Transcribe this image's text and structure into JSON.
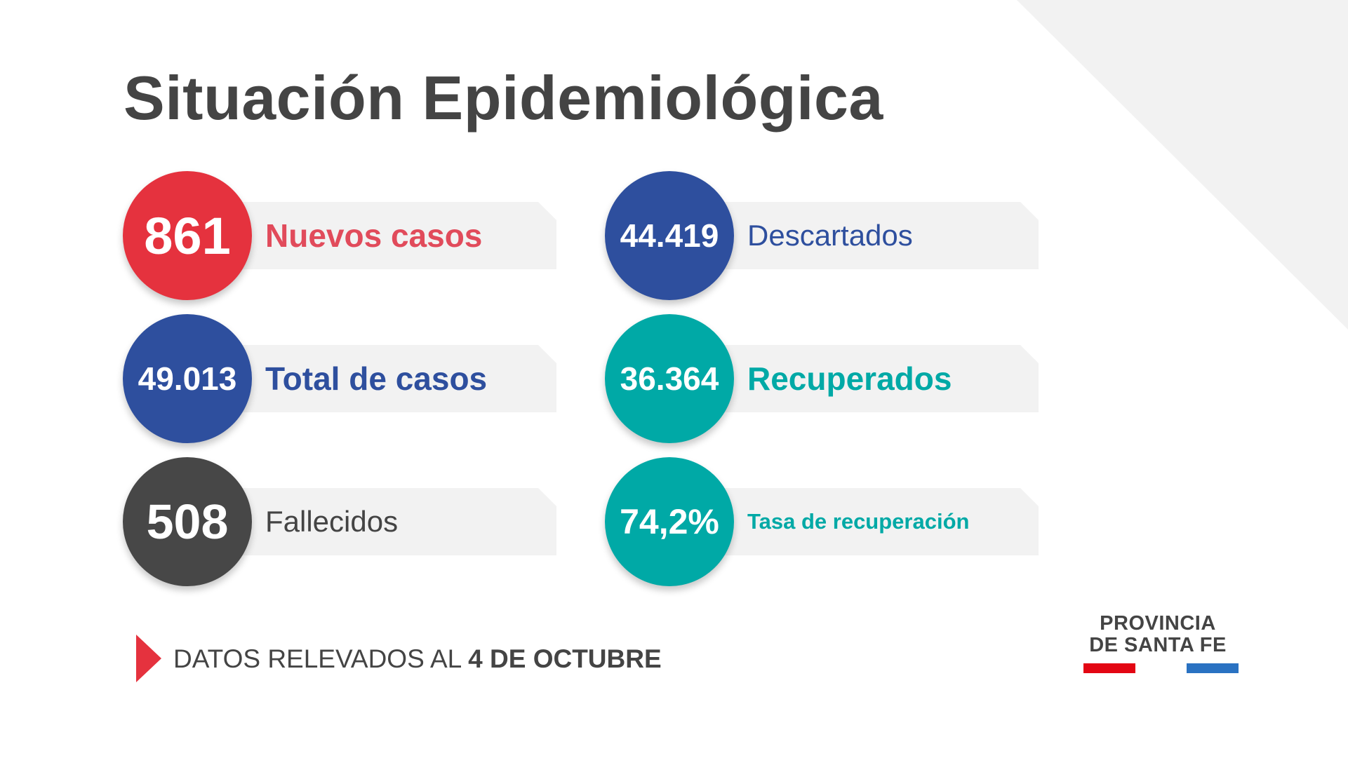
{
  "title": "Situación Epidemiológica",
  "stats": [
    {
      "value": "861",
      "label": "Nuevos casos",
      "circle_color": "#e5323e",
      "label_color": "#e14b5b"
    },
    {
      "value": "49.013",
      "label": "Total de casos",
      "circle_color": "#2e4f9e",
      "label_color": "#2e4f9e"
    },
    {
      "value": "508",
      "label": "Fallecidos",
      "circle_color": "#474747",
      "label_color": "#444444"
    },
    {
      "value": "44.419",
      "label": "Descartados",
      "circle_color": "#2e4f9e",
      "label_color": "#2e4f9e"
    },
    {
      "value": "36.364",
      "label": "Recuperados",
      "circle_color": "#00a9a6",
      "label_color": "#00a9a6"
    },
    {
      "value": "74,2%",
      "label": "Tasa de recuperación",
      "circle_color": "#00a9a6",
      "label_color": "#00a9a6"
    }
  ],
  "footer": {
    "prefix": "DATOS RELEVADOS AL ",
    "date": "4 DE OCTUBRE",
    "arrow_icon": "play-arrow-icon",
    "arrow_color": "#e5323e"
  },
  "logo": {
    "line1": "PROVINCIA",
    "line2": "DE SANTA FE",
    "red_color": "#e30613",
    "blue_color": "#2a72c2"
  }
}
